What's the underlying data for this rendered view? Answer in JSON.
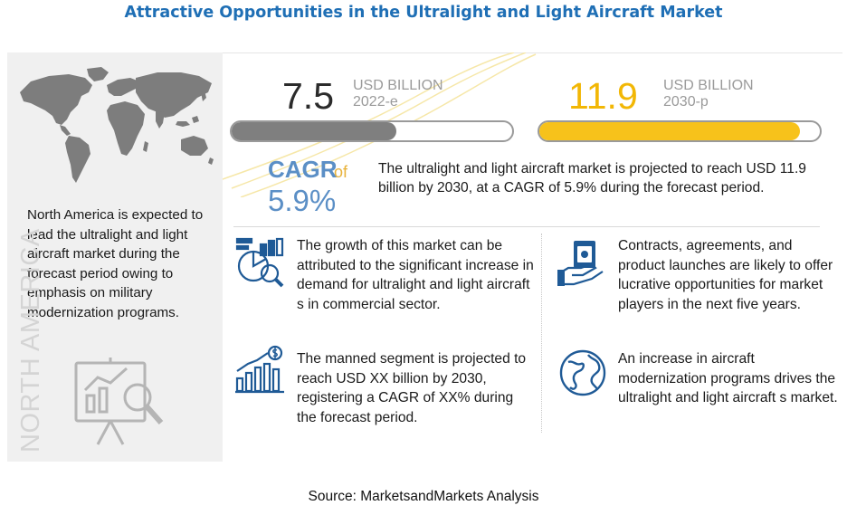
{
  "title": "Attractive Opportunities in the Ultralight and Light Aircraft Market",
  "left_panel": {
    "text": "North America  is expected to lead the ultralight and light aircraft market during the forecast period owing to emphasis on military modernization programs.",
    "vertical_label": "NORTH AMERICA",
    "map_icon": "world-map-icon",
    "presentation_icon": "presentation-analytics-icon"
  },
  "kpi": {
    "start": {
      "value": "7.5",
      "unit": "USD BILLION",
      "year": "2022-e"
    },
    "end": {
      "value": "11.9",
      "unit": "USD BILLION",
      "year": "2030-p"
    }
  },
  "cagr": {
    "label": "CAGR",
    "of": "of",
    "value": "5.9%"
  },
  "projection_text": "The ultralight and light aircraft market is projected to reach USD 11.9 billion by 2030, at a CAGR of 5.9% during the forecast period.",
  "items": [
    {
      "icon": "analytics-magnifier-icon",
      "text": "The growth of this market can be attributed to the significant increase in demand for ultralight and light aircraft s in commercial sector."
    },
    {
      "icon": "money-handshake-icon",
      "text": "Contracts, agreements, and product launches are likely to offer lucrative opportunities for market players in the next five years."
    },
    {
      "icon": "growth-chart-dollar-icon",
      "text": "The manned segment is projected to reach USD XX billion by 2030, registering a CAGR of XX% during the forecast period."
    },
    {
      "icon": "globe-icon",
      "text": "An increase in aircraft modernization programs drives the ultralight and light aircraft s market."
    }
  ],
  "source": "Source: MarketsandMarkets Analysis",
  "colors": {
    "title": "#1f6fb5",
    "bar_start": "#7f7f7f",
    "bar_end": "#f7c21b",
    "cagr": "#5b8fc6",
    "kpi_end_number": "#f2b705"
  },
  "chart_data": {
    "type": "bar",
    "categories": [
      "2022-e",
      "2030-p"
    ],
    "values": [
      7.5,
      11.9
    ],
    "units": "USD BILLION",
    "cagr_percent": 5.9,
    "orientation": "horizontal",
    "title": "",
    "xlabel": "",
    "ylabel": ""
  }
}
